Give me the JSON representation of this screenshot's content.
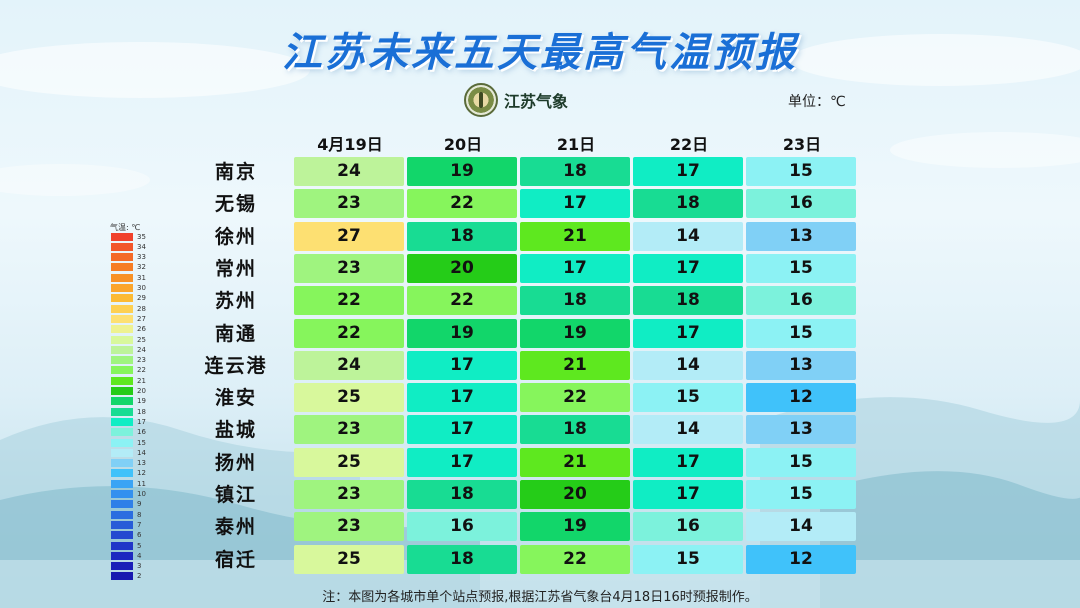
{
  "title": "江苏未来五天最高气温预报",
  "logo": {
    "text": "江苏气象"
  },
  "unit_label": "单位：℃",
  "columns": [
    "4月19日",
    "20日",
    "21日",
    "22日",
    "23日"
  ],
  "rows": [
    {
      "city": "南京",
      "values": [
        24,
        19,
        18,
        17,
        15
      ]
    },
    {
      "city": "无锡",
      "values": [
        23,
        22,
        17,
        18,
        16
      ]
    },
    {
      "city": "徐州",
      "values": [
        27,
        18,
        21,
        14,
        13
      ]
    },
    {
      "city": "常州",
      "values": [
        23,
        20,
        17,
        17,
        15
      ]
    },
    {
      "city": "苏州",
      "values": [
        22,
        22,
        18,
        18,
        16
      ]
    },
    {
      "city": "南通",
      "values": [
        22,
        19,
        19,
        17,
        15
      ]
    },
    {
      "city": "连云港",
      "values": [
        24,
        17,
        21,
        14,
        13
      ]
    },
    {
      "city": "淮安",
      "values": [
        25,
        17,
        22,
        15,
        12
      ]
    },
    {
      "city": "盐城",
      "values": [
        23,
        17,
        18,
        14,
        13
      ]
    },
    {
      "city": "扬州",
      "values": [
        25,
        17,
        21,
        17,
        15
      ]
    },
    {
      "city": "镇江",
      "values": [
        23,
        18,
        20,
        17,
        15
      ]
    },
    {
      "city": "泰州",
      "values": [
        23,
        16,
        19,
        16,
        14
      ]
    },
    {
      "city": "宿迁",
      "values": [
        25,
        18,
        22,
        15,
        12
      ]
    }
  ],
  "legend": {
    "title": "气温: ℃",
    "values": [
      35,
      34,
      33,
      32,
      31,
      30,
      29,
      28,
      27,
      26,
      25,
      24,
      23,
      22,
      21,
      20,
      19,
      18,
      17,
      16,
      15,
      14,
      13,
      12,
      11,
      10,
      9,
      8,
      7,
      6,
      5,
      4,
      3,
      2
    ],
    "colors": {
      "35": "#f0412c",
      "34": "#f2562a",
      "33": "#f46a28",
      "32": "#f67d25",
      "31": "#f89125",
      "30": "#fba52b",
      "29": "#fcba33",
      "28": "#fdd052",
      "27": "#fde072",
      "26": "#eef291",
      "25": "#d8f89c",
      "24": "#bdf39a",
      "23": "#9ff47f",
      "22": "#86f55c",
      "21": "#5ee81f",
      "20": "#25cc18",
      "19": "#12d66a",
      "18": "#18dc93",
      "17": "#10edc4",
      "16": "#7cf2dc",
      "15": "#8cf2f4",
      "14": "#b3ecf7",
      "13": "#80d0f6",
      "12": "#40c2fa",
      "11": "#3aa4f5",
      "10": "#3390ef",
      "9": "#2f7fe8",
      "8": "#2b6de0",
      "7": "#275cd8",
      "6": "#2449d0",
      "5": "#2036c8",
      "4": "#1c28c0",
      "3": "#1a1fb8",
      "2": "#1818b0"
    }
  },
  "note": "注：本图为各城市单个站点预报,根据江苏省气象台4月18日16时预报制作。"
}
